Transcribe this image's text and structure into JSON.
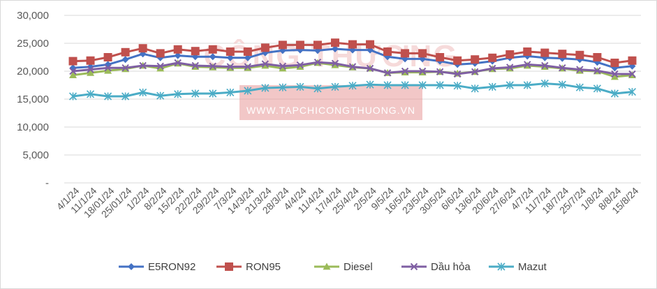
{
  "chart_data": {
    "type": "line",
    "title": "",
    "xlabel": "",
    "ylabel": "",
    "ylim": [
      0,
      30000
    ],
    "y_ticks": [
      "-",
      "5,000",
      "10,000",
      "15,000",
      "20,000",
      "25,000",
      "30,000"
    ],
    "grid": "horizontal",
    "legend_position": "bottom",
    "categories": [
      "4/1/24",
      "11/1/24",
      "18/01/24",
      "25/01/24",
      "1/2/24",
      "8/2/24",
      "15/2/24",
      "22/2/24",
      "29/2/24",
      "7/3/24",
      "14/3/24",
      "21/3/24",
      "28/3/24",
      "4/4/24",
      "11/4/24",
      "17/4/24",
      "25/4/24",
      "2/5/24",
      "9/5/24",
      "16/5/24",
      "23/5/24",
      "30/5/24",
      "6/6/24",
      "13/6/24",
      "20/6/24",
      "27/6/24",
      "4/7/24",
      "11/7/24",
      "18/7/24",
      "25/7/24",
      "1/8/24",
      "8/8/24",
      "15/8/24"
    ],
    "series": [
      {
        "name": "E5RON92",
        "color": "#4472c4",
        "marker": "diamond",
        "values": [
          20600,
          20800,
          21200,
          22100,
          23100,
          22400,
          22800,
          22600,
          22600,
          22400,
          22400,
          23300,
          23700,
          23800,
          23700,
          24000,
          23800,
          23800,
          22600,
          22200,
          22200,
          21800,
          21200,
          21400,
          21800,
          22400,
          22700,
          22400,
          22300,
          22100,
          21600,
          20600,
          20900
        ]
      },
      {
        "name": "RON95",
        "color": "#c0504d",
        "marker": "square",
        "values": [
          21800,
          21900,
          22500,
          23400,
          24100,
          23200,
          23900,
          23600,
          23900,
          23500,
          23500,
          24200,
          24700,
          24700,
          24700,
          25100,
          24800,
          24800,
          23500,
          23200,
          23200,
          22500,
          21900,
          22100,
          22400,
          23000,
          23500,
          23300,
          23100,
          22900,
          22500,
          21500,
          21900
        ]
      },
      {
        "name": "Diesel",
        "color": "#9bbb59",
        "marker": "triangle",
        "values": [
          19300,
          19700,
          20100,
          20400,
          21000,
          20500,
          21400,
          20800,
          20700,
          20600,
          20600,
          21000,
          20500,
          20800,
          21500,
          21100,
          20700,
          20500,
          19700,
          19800,
          19800,
          19900,
          19600,
          19900,
          20400,
          20500,
          21000,
          20800,
          20500,
          20100,
          20000,
          19000,
          19300
        ]
      },
      {
        "name": "Dầu hỏa",
        "color": "#7f5fa3",
        "marker": "x",
        "values": [
          20000,
          20300,
          20600,
          20600,
          21000,
          20900,
          21500,
          21000,
          20900,
          20800,
          20800,
          21300,
          20900,
          21100,
          21600,
          21400,
          20800,
          20500,
          19700,
          20000,
          20000,
          19900,
          19500,
          19900,
          20500,
          20700,
          21200,
          21000,
          20600,
          20300,
          20100,
          19500,
          19500
        ]
      },
      {
        "name": "Mazut",
        "color": "#4bacc6",
        "marker": "star",
        "values": [
          15500,
          15900,
          15500,
          15500,
          16200,
          15600,
          15900,
          16000,
          16000,
          16200,
          16500,
          17000,
          17100,
          17200,
          16900,
          17200,
          17400,
          17600,
          17500,
          17500,
          17500,
          17500,
          17400,
          16900,
          17200,
          17500,
          17500,
          17800,
          17600,
          17100,
          16900,
          16000,
          16300
        ]
      }
    ]
  },
  "watermark": {
    "title": "CÔNG THƯƠNG",
    "url": "WWW.TAPCHICONGTHUONG.VN"
  }
}
